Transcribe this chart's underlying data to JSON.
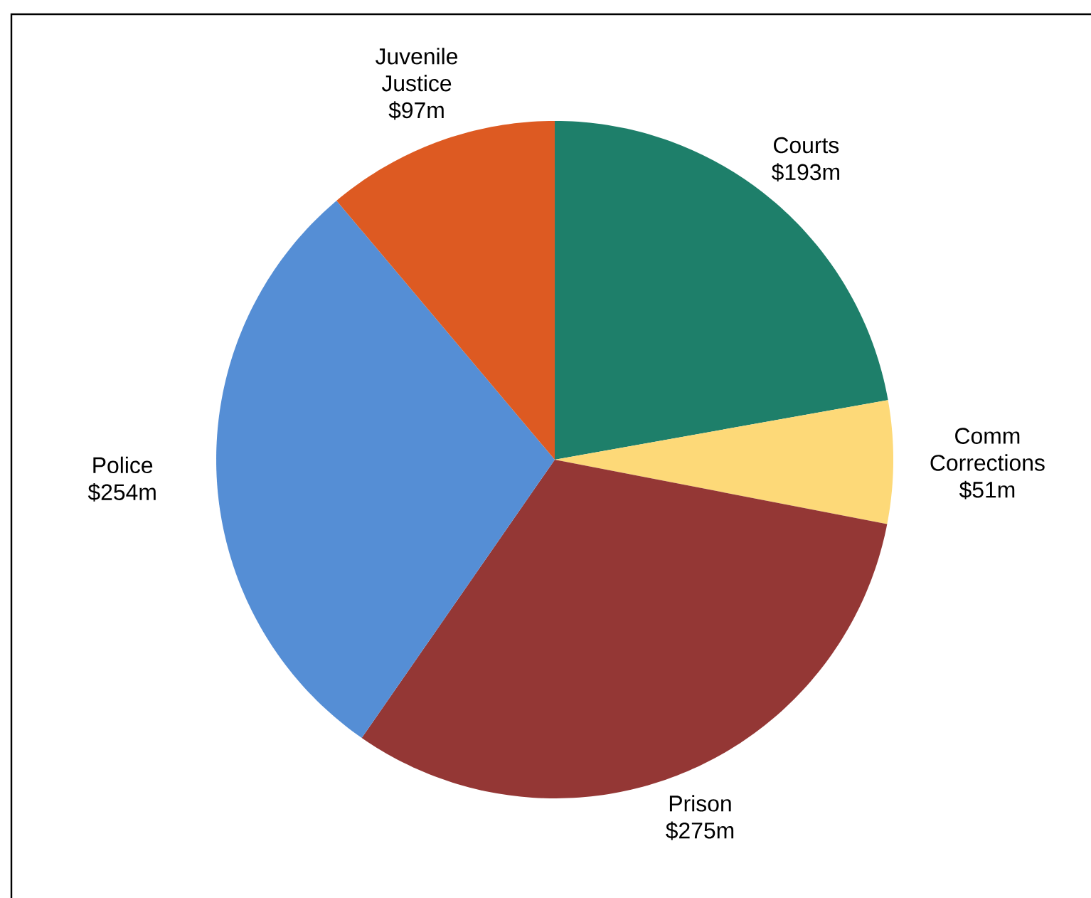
{
  "chart_data": {
    "type": "pie",
    "categories": [
      "Courts",
      "Comm Corrections",
      "Prison",
      "Police",
      "Juvenile Justice"
    ],
    "values": [
      193,
      51,
      275,
      254,
      97
    ],
    "colors": [
      "#1e7f6a",
      "#fdd978",
      "#943735",
      "#558ed5",
      "#dd5a22"
    ],
    "value_labels": [
      "$193m",
      "$51m",
      "$275m",
      "$254m",
      "$97m"
    ]
  }
}
